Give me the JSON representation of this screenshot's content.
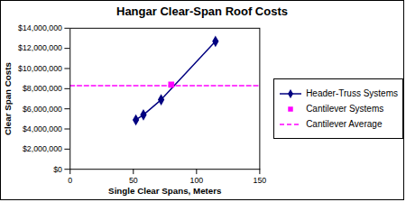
{
  "chart_data": {
    "type": "line",
    "title": "Hangar Clear-Span Roof Costs",
    "x_label": "Single Clear Spans, Meters",
    "y_label": "Clear Span Costs",
    "xlim": [
      0,
      150
    ],
    "xticks": [
      0,
      50,
      100,
      150
    ],
    "ylim": [
      0,
      14000000
    ],
    "yticks": [
      {
        "value": 0,
        "label": "$0"
      },
      {
        "value": 2000000,
        "label": "$2,000,000"
      },
      {
        "value": 4000000,
        "label": "$4,000,000"
      },
      {
        "value": 6000000,
        "label": "$6,000,000"
      },
      {
        "value": 8000000,
        "label": "$8,000,000"
      },
      {
        "value": 10000000,
        "label": "$10,000,000"
      },
      {
        "value": 12000000,
        "label": "$12,000,000"
      },
      {
        "value": 14000000,
        "label": "$14,000,000"
      }
    ],
    "grid": false,
    "legend": "right",
    "series": [
      {
        "name": "Header-Truss Systems",
        "color": "#000080",
        "type": "line",
        "marker": "diamond",
        "line_style": "solid",
        "x": [
          52,
          58,
          72,
          115
        ],
        "values": [
          4900000,
          5400000,
          6900000,
          12700000
        ]
      },
      {
        "name": "Cantilever Systems",
        "color": "#ff00ff",
        "type": "scatter",
        "marker": "square",
        "x": [
          80
        ],
        "values": [
          8400000
        ]
      },
      {
        "name": "Cantilever Average",
        "color": "#ff00ff",
        "type": "line",
        "marker": "none",
        "line_style": "dashed",
        "x": [
          0,
          150
        ],
        "values": [
          8300000,
          8300000
        ]
      }
    ]
  }
}
